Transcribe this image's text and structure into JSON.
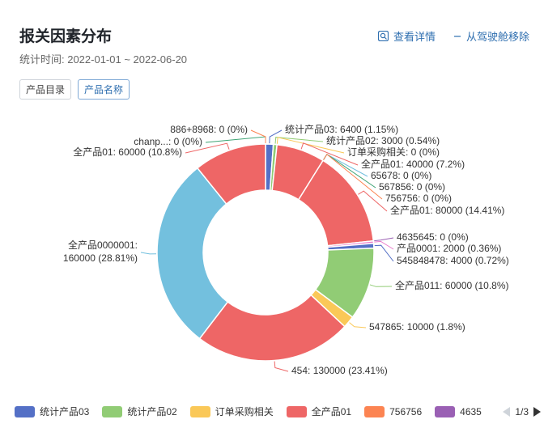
{
  "header": {
    "title": "报关因素分布",
    "subtitle": "统计时间: 2022-01-01 ~ 2022-06-20",
    "view_details": "查看详情",
    "remove_label": "从驾驶舱移除"
  },
  "tabs": [
    {
      "label": "产品目录",
      "active": false
    },
    {
      "label": "产品名称",
      "active": true
    }
  ],
  "legend": {
    "items": [
      {
        "name": "统计产品03",
        "color": "#5470c6"
      },
      {
        "name": "统计产品02",
        "color": "#91cc75"
      },
      {
        "name": "订单采购相关",
        "color": "#fac858"
      },
      {
        "name": "全产品01",
        "color": "#ee6666"
      },
      {
        "name": "756756",
        "color": "#fc8452"
      },
      {
        "name": "4635",
        "color": "#9a60b4"
      }
    ],
    "page": "1/3"
  },
  "chart_data": {
    "type": "pie",
    "donut": true,
    "slices": [
      {
        "label": "统计产品03: 6400 (1.15%)",
        "value": 6400,
        "color": "#5470c6"
      },
      {
        "label": "统计产品02: 3000 (0.54%)",
        "value": 3000,
        "color": "#91cc75"
      },
      {
        "label": "订单采购相关: 0 (0%)",
        "value": 0,
        "color": "#fac858"
      },
      {
        "label": "全产品01: 40000 (7.2%)",
        "value": 40000,
        "color": "#ee6666"
      },
      {
        "label": "65678: 0 (0%)",
        "value": 0,
        "color": "#73c0de"
      },
      {
        "label": "567856: 0 (0%)",
        "value": 0,
        "color": "#3ba272"
      },
      {
        "label": "756756: 0 (0%)",
        "value": 0,
        "color": "#fc8452"
      },
      {
        "label": "全产品01: 80000 (14.41%)",
        "value": 80000,
        "color": "#ee6666"
      },
      {
        "label": "4635645: 0 (0%)",
        "value": 0,
        "color": "#9a60b4"
      },
      {
        "label": "产品0001: 2000 (0.36%)",
        "value": 2000,
        "color": "#ea7ccc"
      },
      {
        "label": "545848478: 4000 (0.72%)",
        "value": 4000,
        "color": "#5470c6"
      },
      {
        "label": "全产品011: 60000 (10.8%)",
        "value": 60000,
        "color": "#91cc75"
      },
      {
        "label": "547865: 10000 (1.8%)",
        "value": 10000,
        "color": "#fac858"
      },
      {
        "label": "454: 130000 (23.41%)",
        "value": 130000,
        "color": "#ee6666"
      },
      {
        "label": "全产品0000001:|160000 (28.81%)",
        "value": 160000,
        "color": "#73c0de"
      },
      {
        "label": "全产品01: 60000 (10.8%)",
        "value": 60000,
        "color": "#ee6666"
      },
      {
        "label": "chanp...: 0 (0%)",
        "value": 0,
        "color": "#3ba272"
      },
      {
        "label": "886+8968: 0 (0%)",
        "value": 0,
        "color": "#fc8452"
      }
    ]
  }
}
